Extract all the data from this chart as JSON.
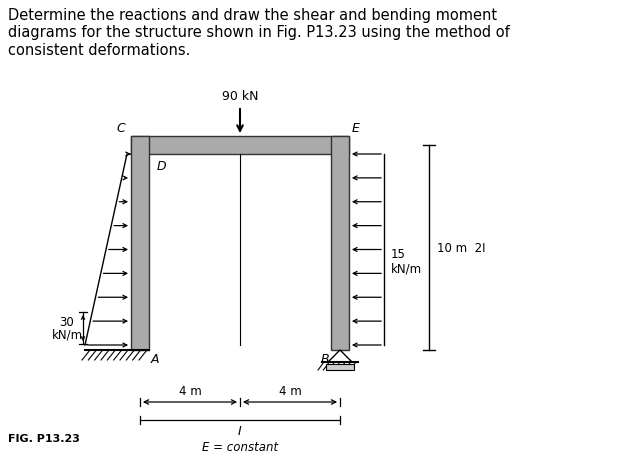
{
  "title_text": "Determine the reactions and draw the shear and bending moment\ndiagrams for the structure shown in Fig. P13.23 using the method of\nconsistent deformations.",
  "title_fontsize": 10.5,
  "fig_label": "FIG. P13.23",
  "load_90kN_label": "90 kN",
  "label_30kNm": "30\nkN/m",
  "label_4m_left": "4 m",
  "label_4m_right": "4 m",
  "label_I": "I",
  "label_Econstant": "E = constant",
  "label_10m2I": "10 m 2I",
  "label_15kNm": "15\nkN/m",
  "background_color": "#ffffff",
  "beam_facecolor": "#aaaaaa",
  "beam_edgecolor": "#333333"
}
